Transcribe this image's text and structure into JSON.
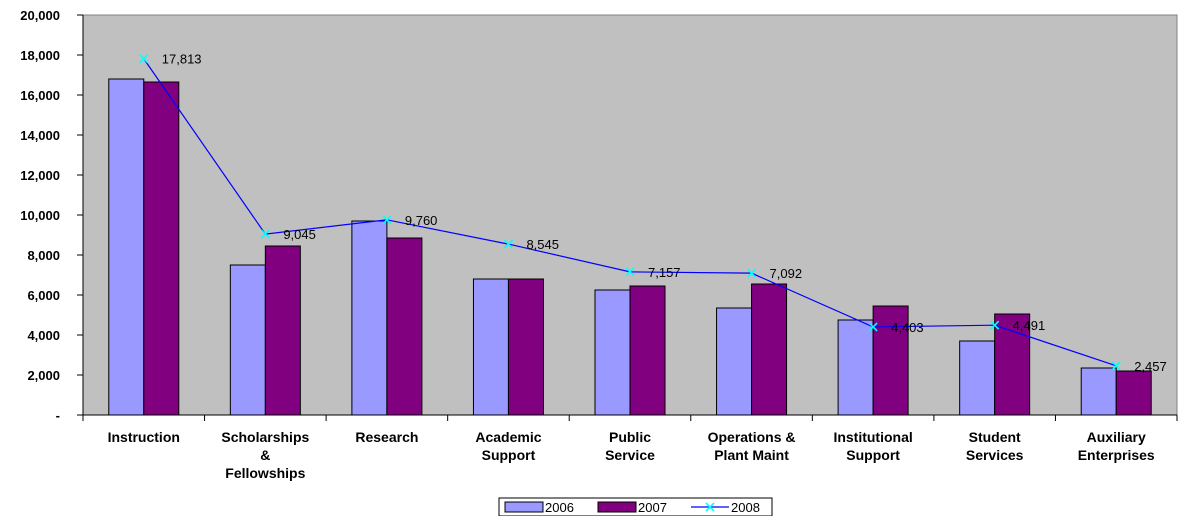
{
  "chart_data": {
    "type": "bar",
    "categories": [
      [
        "Instruction"
      ],
      [
        "Scholarships",
        "&",
        "Fellowships"
      ],
      [
        "Research"
      ],
      [
        "Academic",
        "Support"
      ],
      [
        "Public",
        "Service"
      ],
      [
        "Operations &",
        "Plant Maint"
      ],
      [
        "Institutional",
        "Support"
      ],
      [
        "Student",
        "Services"
      ],
      [
        "Auxiliary",
        "Enterprises"
      ]
    ],
    "series": [
      {
        "name": "2006",
        "type": "bar",
        "color": "#9999ff",
        "values": [
          16800,
          7500,
          9700,
          6800,
          6250,
          5350,
          4750,
          3700,
          2350
        ]
      },
      {
        "name": "2007",
        "type": "bar",
        "color": "#800080",
        "values": [
          16650,
          8450,
          8850,
          6800,
          6450,
          6550,
          5450,
          5050,
          2200
        ]
      },
      {
        "name": "2008",
        "type": "line",
        "color": "#0000ff",
        "marker_color": "#00ffff",
        "values": [
          17813,
          9045,
          9760,
          8545,
          7157,
          7092,
          4403,
          4491,
          2457
        ],
        "data_labels": [
          "17,813",
          "9,045",
          "9,760",
          "8,545",
          "7,157",
          "7,092",
          "4,403",
          "4,491",
          "2,457"
        ]
      }
    ],
    "ylim": [
      0,
      20000
    ],
    "yticks": [
      0,
      2000,
      4000,
      6000,
      8000,
      10000,
      12000,
      14000,
      16000,
      18000,
      20000
    ],
    "ytick_labels": [
      "-",
      "2,000",
      "4,000",
      "6,000",
      "8,000",
      "10,000",
      "12,000",
      "14,000",
      "16,000",
      "18,000",
      "20,000"
    ],
    "plot_background": "#c0c0c0",
    "grid": false,
    "legend_position": "bottom-center"
  }
}
